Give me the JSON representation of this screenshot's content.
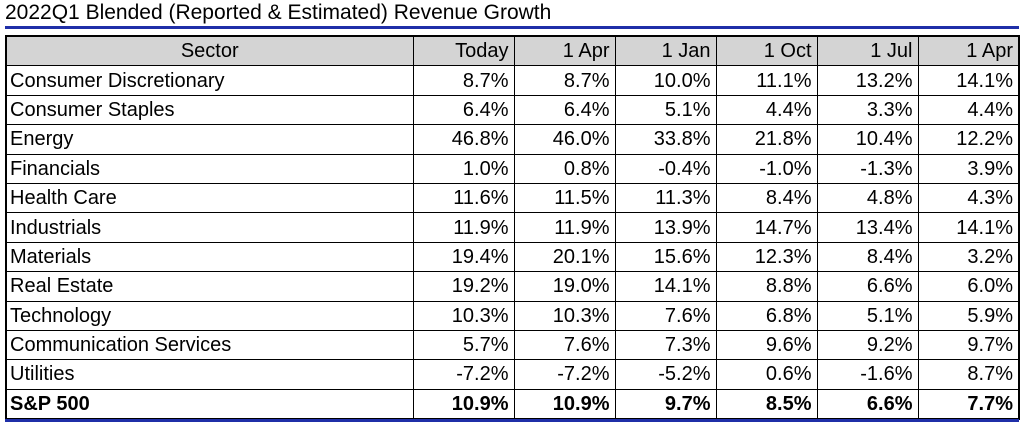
{
  "title": "2022Q1 Blended (Reported & Estimated) Revenue Growth",
  "colors": {
    "rule": "#1f2fa8",
    "header_bg": "#d4d4d4"
  },
  "table": {
    "headers": [
      "Sector",
      "Today",
      "1 Apr",
      "1 Jan",
      "1 Oct",
      "1 Jul",
      "1 Apr"
    ],
    "rows": [
      {
        "sector": "Consumer Discretionary",
        "values": [
          "8.7%",
          "8.7%",
          "10.0%",
          "11.1%",
          "13.2%",
          "14.1%"
        ]
      },
      {
        "sector": "Consumer Staples",
        "values": [
          "6.4%",
          "6.4%",
          "5.1%",
          "4.4%",
          "3.3%",
          "4.4%"
        ]
      },
      {
        "sector": "Energy",
        "values": [
          "46.8%",
          "46.0%",
          "33.8%",
          "21.8%",
          "10.4%",
          "12.2%"
        ]
      },
      {
        "sector": "Financials",
        "values": [
          "1.0%",
          "0.8%",
          "-0.4%",
          "-1.0%",
          "-1.3%",
          "3.9%"
        ]
      },
      {
        "sector": "Health Care",
        "values": [
          "11.6%",
          "11.5%",
          "11.3%",
          "8.4%",
          "4.8%",
          "4.3%"
        ]
      },
      {
        "sector": "Industrials",
        "values": [
          "11.9%",
          "11.9%",
          "13.9%",
          "14.7%",
          "13.4%",
          "14.1%"
        ]
      },
      {
        "sector": "Materials",
        "values": [
          "19.4%",
          "20.1%",
          "15.6%",
          "12.3%",
          "8.4%",
          "3.2%"
        ]
      },
      {
        "sector": "Real Estate",
        "values": [
          "19.2%",
          "19.0%",
          "14.1%",
          "8.8%",
          "6.6%",
          "6.0%"
        ]
      },
      {
        "sector": "Technology",
        "values": [
          "10.3%",
          "10.3%",
          "7.6%",
          "6.8%",
          "5.1%",
          "5.9%"
        ]
      },
      {
        "sector": "Communication Services",
        "values": [
          "5.7%",
          "7.6%",
          "7.3%",
          "9.6%",
          "9.2%",
          "9.7%"
        ]
      },
      {
        "sector": "Utilities",
        "values": [
          "-7.2%",
          "-7.2%",
          "-5.2%",
          "0.6%",
          "-1.6%",
          "8.7%"
        ]
      }
    ],
    "total": {
      "sector": "S&P 500",
      "values": [
        "10.9%",
        "10.9%",
        "9.7%",
        "8.5%",
        "6.6%",
        "7.7%"
      ]
    }
  }
}
